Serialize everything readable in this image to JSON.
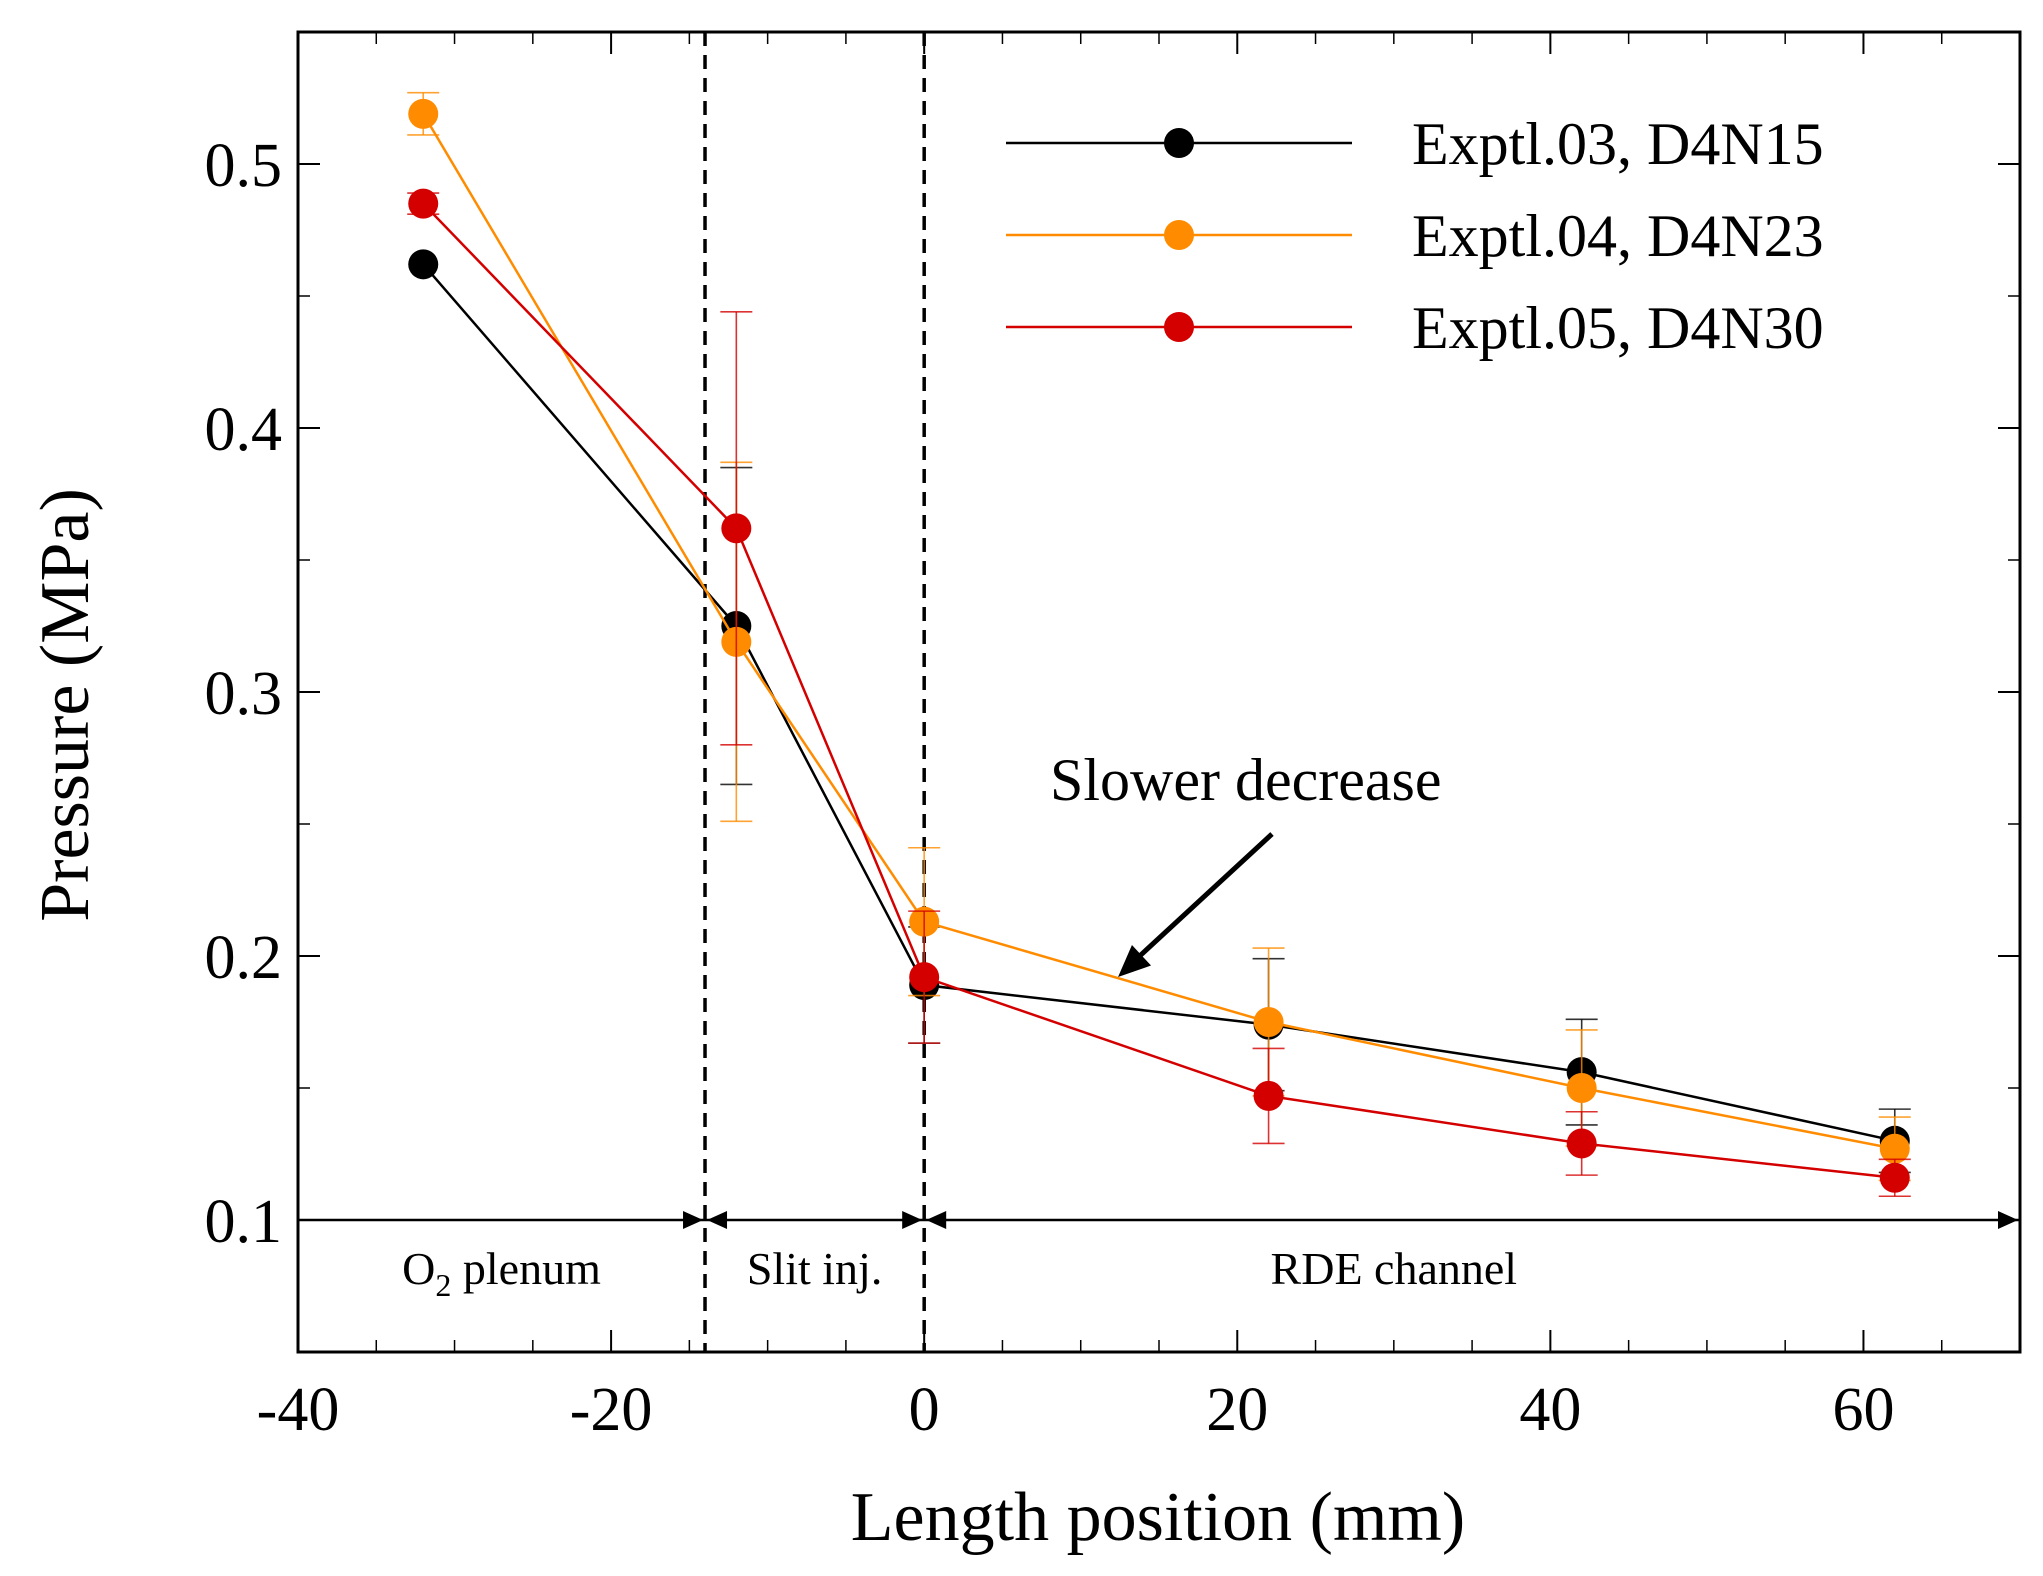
{
  "chart_data": {
    "type": "line",
    "title": "",
    "xlabel": "Length position (mm)",
    "ylabel": "Pressure (MPa)",
    "xlim": [
      -40,
      70
    ],
    "ylim": [
      0.05,
      0.55
    ],
    "xticks": [
      -40,
      -20,
      0,
      20,
      40,
      60
    ],
    "xtick_labels": [
      "-40",
      "-20",
      "0",
      "20",
      "40",
      "60"
    ],
    "yticks": [
      0.1,
      0.2,
      0.3,
      0.4,
      0.5
    ],
    "ytick_labels": [
      "0.1",
      "0.2",
      "0.3",
      "0.4",
      "0.5"
    ],
    "legend_position": "top-right",
    "series": [
      {
        "name": "Exptl.03, D4N15",
        "color": "#000000",
        "x": [
          -32,
          -12,
          0,
          22,
          42,
          62
        ],
        "values": [
          0.462,
          0.325,
          0.189,
          0.174,
          0.156,
          0.13
        ],
        "err": [
          0.0,
          0.06,
          0.022,
          0.025,
          0.02,
          0.012
        ]
      },
      {
        "name": "Exptl.04, D4N23",
        "color": "#ff8c00",
        "x": [
          -32,
          -12,
          0,
          22,
          42,
          62
        ],
        "values": [
          0.519,
          0.319,
          0.213,
          0.175,
          0.15,
          0.127
        ],
        "err": [
          0.008,
          0.068,
          0.028,
          0.028,
          0.022,
          0.012
        ]
      },
      {
        "name": "Exptl.05, D4N30",
        "color": "#d40000",
        "x": [
          -32,
          -12,
          0,
          22,
          42,
          62
        ],
        "values": [
          0.485,
          0.362,
          0.192,
          0.147,
          0.129,
          0.116
        ],
        "err": [
          0.004,
          0.082,
          0.025,
          0.018,
          0.012,
          0.007
        ]
      }
    ],
    "dividers_x": [
      -14,
      0
    ],
    "regions": [
      {
        "label_main": "O",
        "label_sub": "2",
        "label_rest": " plenum",
        "from": -40,
        "to": -14
      },
      {
        "label": "Slit inj.",
        "from": -14,
        "to": 0
      },
      {
        "label": "RDE channel",
        "from": 0,
        "to": 70
      }
    ],
    "annotation": {
      "text": "Slower decrease",
      "points_to": [
        12,
        0.189
      ]
    }
  }
}
